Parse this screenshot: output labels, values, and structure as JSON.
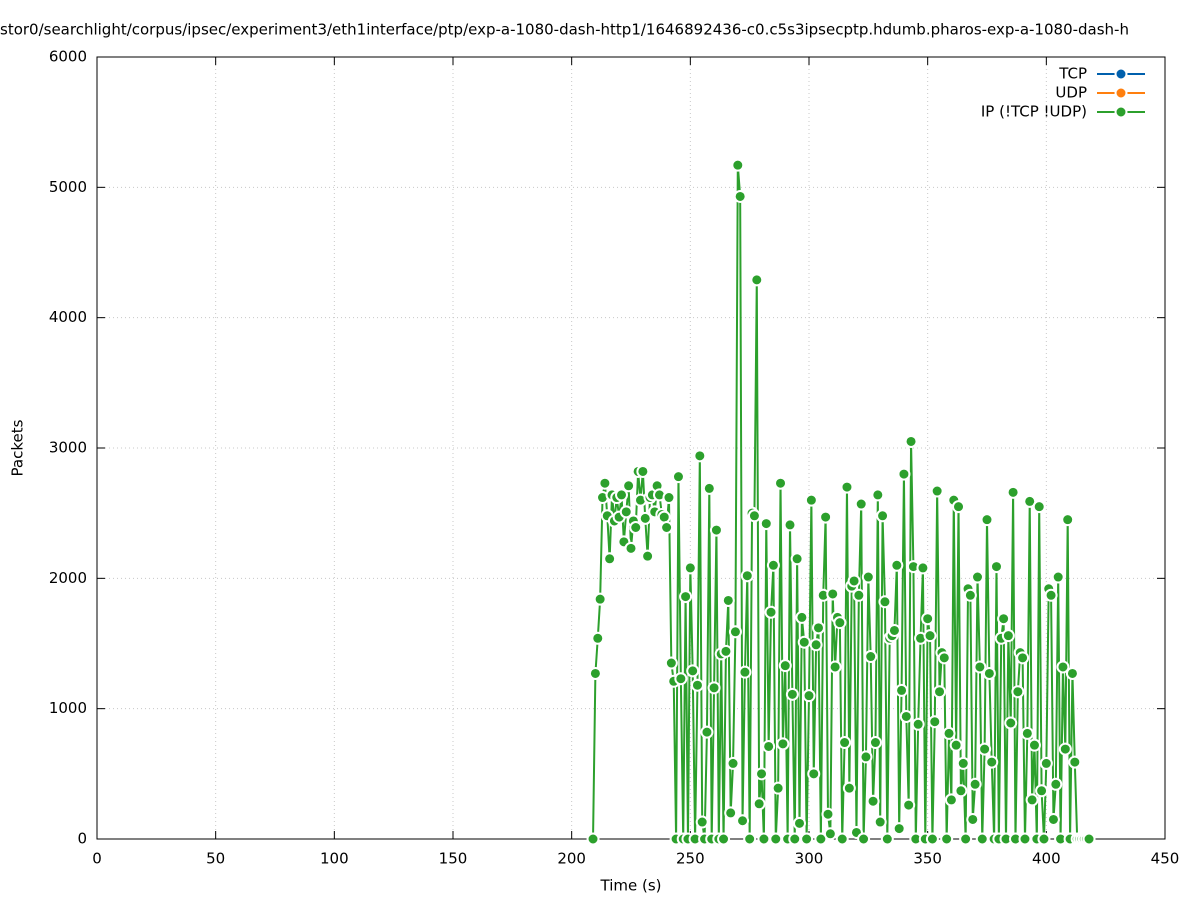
{
  "chart_data": {
    "type": "line",
    "title": "stor0/searchlight/corpus/ipsec/experiment3/eth1interface/ptp/exp-a-1080-dash-http1/1646892436-c0.c5s3ipsecptp.hdumb.pharos-exp-a-1080-dash-h",
    "x_label": "Time (s)",
    "y_label": "Packets",
    "xlim": [
      0,
      450
    ],
    "xticks": [
      0,
      50,
      100,
      150,
      200,
      250,
      300,
      350,
      400,
      450
    ],
    "ylim": [
      0,
      6000
    ],
    "yticks": [
      0,
      1000,
      2000,
      3000,
      4000,
      5000,
      6000
    ],
    "grid": true,
    "legend": "top-right",
    "series": [
      {
        "name": "TCP",
        "color": "#0060ad",
        "x": [],
        "values": []
      },
      {
        "name": "UDP",
        "color": "#ff7f0e",
        "x": [],
        "values": []
      },
      {
        "name": "IP (!TCP  !UDP)",
        "color": "#2ca02c",
        "x": [
          209,
          210,
          211,
          212,
          213,
          214,
          215,
          216,
          217,
          218,
          219,
          220,
          221,
          222,
          223,
          224,
          225,
          226,
          227,
          228,
          229,
          230,
          231,
          232,
          233,
          234,
          235,
          236,
          237,
          238,
          239,
          240,
          241,
          242,
          243,
          244,
          245,
          246,
          247,
          248,
          249,
          250,
          251,
          252,
          253,
          254,
          255,
          256,
          257,
          258,
          259,
          260,
          261,
          262,
          263,
          264,
          265,
          266,
          267,
          268,
          269,
          270,
          271,
          272,
          273,
          274,
          275,
          276,
          277,
          278,
          279,
          280,
          281,
          282,
          283,
          284,
          285,
          286,
          287,
          288,
          289,
          290,
          291,
          292,
          293,
          294,
          295,
          296,
          297,
          298,
          299,
          300,
          301,
          302,
          303,
          304,
          305,
          306,
          307,
          308,
          309,
          310,
          311,
          312,
          313,
          314,
          315,
          316,
          317,
          318,
          319,
          320,
          321,
          322,
          323,
          324,
          325,
          326,
          327,
          328,
          329,
          330,
          331,
          332,
          333,
          334,
          335,
          336,
          337,
          338,
          339,
          340,
          341,
          342,
          343,
          344,
          345,
          346,
          347,
          348,
          349,
          350,
          351,
          352,
          353,
          354,
          355,
          356,
          357,
          358,
          359,
          360,
          361,
          362,
          363,
          364,
          365,
          366,
          367,
          368,
          369,
          370,
          371,
          372,
          373,
          374,
          375,
          376,
          377,
          378,
          379,
          380,
          381,
          382,
          383,
          384,
          385,
          386,
          387,
          388,
          389,
          390,
          391,
          392,
          393,
          394,
          395,
          396,
          397,
          398,
          399,
          400,
          401,
          402,
          403,
          404,
          405,
          406,
          407,
          408,
          409,
          410,
          411,
          412,
          413,
          414,
          415,
          416,
          417,
          418
        ],
        "values": [
          0,
          1270,
          1540,
          1840,
          2620,
          2730,
          2480,
          2150,
          2640,
          2440,
          2620,
          2470,
          2640,
          2280,
          2510,
          2710,
          2230,
          2440,
          2390,
          2820,
          2600,
          2820,
          2460,
          2170,
          2620,
          2640,
          2510,
          2710,
          2640,
          2490,
          2470,
          2390,
          2620,
          1350,
          1210,
          0,
          2780,
          1230,
          0,
          1860,
          0,
          2080,
          1290,
          0,
          1180,
          2940,
          130,
          0,
          820,
          2690,
          0,
          1160,
          2370,
          0,
          1420,
          0,
          1440,
          1830,
          200,
          580,
          1590,
          5170,
          4930,
          140,
          1280,
          2020,
          0,
          2500,
          2480,
          4290,
          270,
          500,
          0,
          2420,
          710,
          1740,
          2100,
          0,
          390,
          2730,
          730,
          1330,
          0,
          2410,
          1110,
          0,
          2150,
          120,
          1700,
          1510,
          0,
          1100,
          2600,
          500,
          1490,
          1620,
          0,
          1870,
          2470,
          190,
          40,
          1880,
          1320,
          1700,
          1660,
          0,
          740,
          2700,
          390,
          1940,
          1980,
          50,
          1870,
          2570,
          0,
          630,
          2010,
          1400,
          290,
          740,
          2640,
          130,
          2480,
          1820,
          0,
          1540,
          1560,
          1600,
          2100,
          80,
          1140,
          2800,
          940,
          260,
          3050,
          2090,
          0,
          880,
          1540,
          2080,
          0,
          1690,
          1560,
          0,
          900,
          2670,
          1130,
          1430,
          1390,
          0,
          810,
          300,
          2600,
          720,
          2550,
          370,
          580,
          0,
          1920,
          1870,
          150,
          420,
          2010,
          1320,
          0,
          690,
          2450,
          1270,
          590,
          0,
          2090,
          0,
          1540,
          1690,
          0,
          1560,
          890,
          2660,
          0,
          1130,
          1430,
          1390,
          0,
          810,
          2590,
          300,
          720,
          0,
          2550,
          370,
          0,
          580,
          1920,
          1870,
          150,
          420,
          2010,
          0,
          1320,
          690,
          2450,
          0,
          1270,
          590,
          0,
          0,
          0,
          0,
          0,
          0
        ]
      }
    ]
  }
}
